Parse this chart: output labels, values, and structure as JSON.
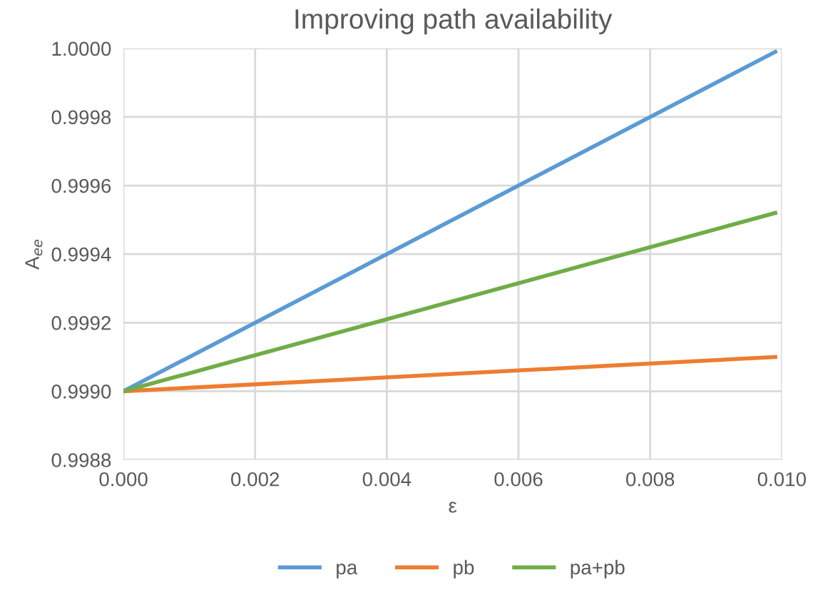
{
  "chart_data": {
    "type": "line",
    "title": "Improving path availability",
    "xlabel": "ε",
    "ylabel": "A$_{ee}$",
    "x": [
      0.0,
      0.0099
    ],
    "series": [
      {
        "name": "pa",
        "color": "#5b9bd5",
        "values": [
          0.999,
          0.99999
        ]
      },
      {
        "name": "pb",
        "color": "#ed7d31",
        "values": [
          0.999,
          0.9991
        ]
      },
      {
        "name": "pa+pb",
        "color": "#70ad47",
        "values": [
          0.999,
          0.99952
        ]
      }
    ],
    "xlim": [
      0.0,
      0.01
    ],
    "xticks": [
      {
        "value": 0.0,
        "label": "0.000"
      },
      {
        "value": 0.002,
        "label": "0.002"
      },
      {
        "value": 0.004,
        "label": "0.004"
      },
      {
        "value": 0.006,
        "label": "0.006"
      },
      {
        "value": 0.008,
        "label": "0.008"
      },
      {
        "value": 0.01,
        "label": "0.010"
      }
    ],
    "ylim": [
      0.9988,
      1.0
    ],
    "yticks": [
      {
        "value": 0.9988,
        "label": "0.9988"
      },
      {
        "value": 0.999,
        "label": "0.9990"
      },
      {
        "value": 0.9992,
        "label": "0.9992"
      },
      {
        "value": 0.9994,
        "label": "0.9994"
      },
      {
        "value": 0.9996,
        "label": "0.9996"
      },
      {
        "value": 0.9998,
        "label": "0.9998"
      },
      {
        "value": 1.0,
        "label": "1.0000"
      }
    ],
    "grid": true,
    "legend": "bottom",
    "marker": "none",
    "line_style": "solid"
  }
}
